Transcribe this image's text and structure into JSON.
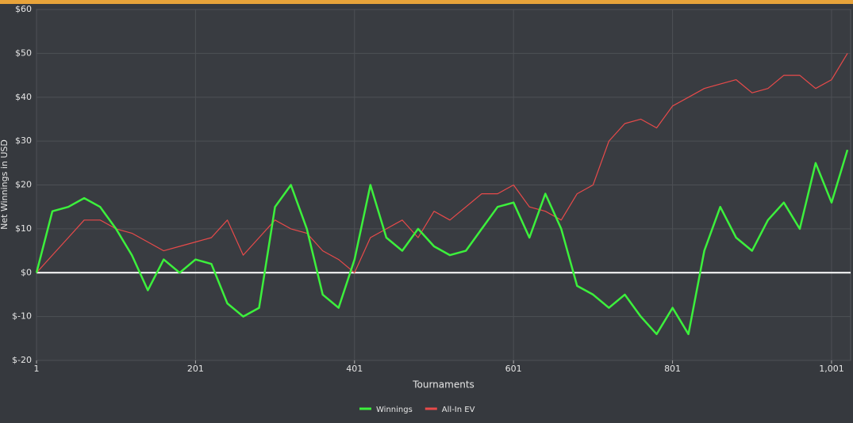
{
  "chart_data": {
    "type": "line",
    "y_label": "Net Winnings in USD",
    "x_label": "Tournaments",
    "x": [
      1,
      21,
      41,
      61,
      81,
      101,
      121,
      141,
      161,
      181,
      201,
      221,
      241,
      261,
      281,
      301,
      321,
      341,
      361,
      381,
      401,
      421,
      441,
      461,
      481,
      501,
      521,
      541,
      561,
      581,
      601,
      621,
      641,
      661,
      681,
      701,
      721,
      741,
      761,
      781,
      801,
      821,
      841,
      861,
      881,
      901,
      921,
      941,
      961,
      981,
      1001,
      1021
    ],
    "series": [
      {
        "name": "Winnings",
        "color": "#3cf03c",
        "values": [
          0,
          14,
          15,
          17,
          15,
          10,
          4,
          -4,
          3,
          0,
          3,
          2,
          -7,
          -10,
          -8,
          15,
          20,
          10,
          -5,
          -8,
          3,
          20,
          8,
          5,
          10,
          6,
          4,
          5,
          10,
          15,
          16,
          8,
          18,
          10,
          -3,
          -5,
          -8,
          -5,
          -10,
          -14,
          -8,
          -14,
          5,
          15,
          8,
          5,
          12,
          16,
          10,
          25,
          16,
          28
        ]
      },
      {
        "name": "All-In EV",
        "color": "#e84a4a",
        "values": [
          0,
          4,
          8,
          12,
          12,
          10,
          9,
          7,
          5,
          6,
          7,
          8,
          12,
          4,
          8,
          12,
          10,
          9,
          5,
          3,
          0,
          8,
          10,
          12,
          8,
          14,
          12,
          15,
          18,
          18,
          20,
          15,
          14,
          12,
          18,
          20,
          30,
          34,
          35,
          33,
          38,
          40,
          42,
          43,
          44,
          41,
          42,
          45,
          45,
          42,
          44,
          50
        ]
      }
    ],
    "xlim": [
      1,
      1025
    ],
    "xticks": [
      1,
      201,
      401,
      601,
      801,
      {
        "value": 1001,
        "label": "1,001"
      }
    ],
    "ylim": [
      -20,
      60
    ],
    "yticks": [
      {
        "value": -20,
        "label": "$-20"
      },
      {
        "value": -10,
        "label": "$-10"
      },
      {
        "value": 0,
        "label": "$0"
      },
      {
        "value": 10,
        "label": "$10"
      },
      {
        "value": 20,
        "label": "$20"
      },
      {
        "value": 30,
        "label": "$30"
      },
      {
        "value": 40,
        "label": "$40"
      },
      {
        "value": 50,
        "label": "$50"
      },
      {
        "value": 60,
        "label": "$60"
      }
    ],
    "grid": true
  }
}
